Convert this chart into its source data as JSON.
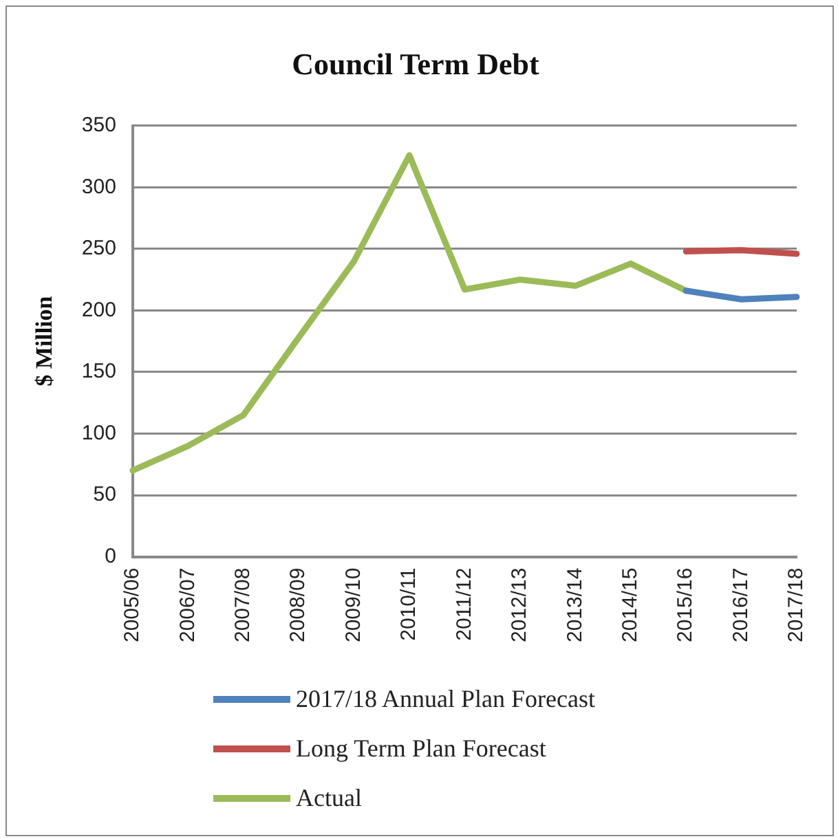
{
  "chart_data": {
    "type": "line",
    "title": "Council Term Debt",
    "ylabel": "$ Million",
    "categories": [
      "2005/06",
      "2006/07",
      "2007/08",
      "2008/09",
      "2009/10",
      "2010/11",
      "2011/12",
      "2012/13",
      "2013/14",
      "2014/15",
      "2015/16",
      "2016/17",
      "2017/18"
    ],
    "series": [
      {
        "name": "2017/18 Annual Plan Forecast",
        "color": "#4f81bd",
        "values": [
          null,
          null,
          null,
          null,
          null,
          null,
          null,
          null,
          null,
          null,
          216,
          209,
          211
        ]
      },
      {
        "name": "Long Term Plan Forecast",
        "color": "#c0504d",
        "values": [
          null,
          null,
          null,
          null,
          null,
          null,
          null,
          null,
          null,
          null,
          248,
          249,
          246
        ]
      },
      {
        "name": "Actual",
        "color": "#9bbb59",
        "values": [
          70,
          90,
          115,
          178,
          240,
          326,
          217,
          225,
          220,
          238,
          216,
          null,
          null
        ]
      }
    ],
    "ylim": [
      0,
      350
    ],
    "yticks": [
      0,
      50,
      100,
      150,
      200,
      250,
      300,
      350
    ],
    "grid": "y",
    "legend": "bottom",
    "marker": "none",
    "line_style": "solid"
  }
}
